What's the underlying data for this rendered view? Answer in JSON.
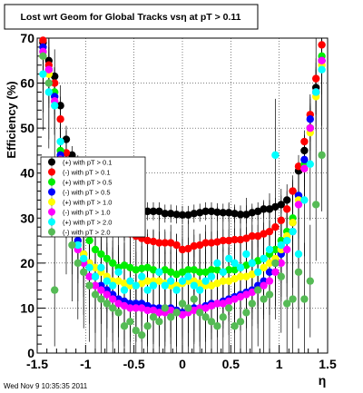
{
  "chart_data": {
    "type": "scatter",
    "title": "Lost wrt Geom for Global Tracks vsη at pT > 0.11",
    "ylabel": "Efficiency (%)",
    "xlabel": "η",
    "xlim": [
      -1.5,
      1.5
    ],
    "ylim": [
      0,
      70
    ],
    "xticks": [
      "-1.5",
      "-1",
      "-0.5",
      "0",
      "0.5",
      "1",
      "1.5"
    ],
    "yticks": [
      "0",
      "10",
      "20",
      "30",
      "40",
      "50",
      "60",
      "70"
    ],
    "grid": true,
    "legend_position": "left-middle",
    "footer": "Wed Nov  9 10:35:35 2011",
    "series": [
      {
        "name": "(+) with pT > 0.1",
        "color": "#000000",
        "err": 0.8,
        "x": [
          -1.44,
          -1.38,
          -1.32,
          -1.26,
          -1.2,
          -1.14,
          -1.08,
          -1.02,
          -0.96,
          -0.9,
          -0.84,
          -0.78,
          -0.72,
          -0.66,
          -0.6,
          -0.54,
          -0.48,
          -0.42,
          -0.36,
          -0.3,
          -0.24,
          -0.18,
          -0.12,
          -0.06,
          0.0,
          0.06,
          0.12,
          0.18,
          0.24,
          0.3,
          0.36,
          0.42,
          0.48,
          0.54,
          0.6,
          0.66,
          0.72,
          0.78,
          0.84,
          0.9,
          0.96,
          1.02,
          1.08,
          1.14,
          1.2,
          1.26,
          1.32,
          1.38,
          1.44
        ],
        "y": [
          69,
          65,
          61.5,
          55,
          47.5,
          44,
          42,
          40.5,
          39,
          37,
          35.5,
          34.5,
          33.5,
          33,
          32.5,
          32,
          32,
          31.5,
          31.5,
          31.5,
          31.5,
          31,
          31,
          30.8,
          30.7,
          30.7,
          31,
          31.2,
          31.5,
          31.5,
          31.3,
          31.2,
          31.2,
          31,
          30.8,
          30.8,
          31.2,
          31.5,
          32,
          32,
          32.5,
          33,
          34,
          36,
          40.5,
          45,
          50,
          59,
          65
        ]
      },
      {
        "name": "(-) with pT > 0.1",
        "color": "#ff0000",
        "err": 1.0,
        "x": [
          -1.44,
          -1.38,
          -1.32,
          -1.26,
          -1.2,
          -1.14,
          -1.08,
          -1.02,
          -0.96,
          -0.9,
          -0.84,
          -0.78,
          -0.72,
          -0.66,
          -0.6,
          -0.54,
          -0.48,
          -0.42,
          -0.36,
          -0.3,
          -0.24,
          -0.18,
          -0.12,
          -0.06,
          0.0,
          0.06,
          0.12,
          0.18,
          0.24,
          0.3,
          0.36,
          0.42,
          0.48,
          0.54,
          0.6,
          0.66,
          0.72,
          0.78,
          0.84,
          0.9,
          0.96,
          1.02,
          1.08,
          1.14,
          1.2,
          1.26,
          1.32,
          1.38,
          1.44
        ],
        "y": [
          69.5,
          64,
          60,
          52,
          44.5,
          40.5,
          37,
          35,
          33.5,
          32.5,
          31.5,
          30.5,
          29.5,
          28.5,
          27.5,
          26.5,
          26,
          25.5,
          25,
          24.8,
          24.5,
          24.5,
          24.5,
          24,
          23,
          23.2,
          23.8,
          24,
          24.5,
          24.5,
          24.7,
          25,
          25,
          25.2,
          25.2,
          25.5,
          26,
          26,
          26.5,
          27,
          28,
          29.5,
          32,
          36,
          41.5,
          47,
          53,
          61,
          68.5
        ]
      },
      {
        "name": "(+) with pT > 0.5",
        "color": "#00ee00",
        "err": 2.0,
        "x": [
          -1.44,
          -1.38,
          -1.32,
          -1.26,
          -1.2,
          -1.14,
          -1.08,
          -1.02,
          -0.96,
          -0.9,
          -0.84,
          -0.78,
          -0.72,
          -0.66,
          -0.6,
          -0.54,
          -0.48,
          -0.42,
          -0.36,
          -0.3,
          -0.24,
          -0.18,
          -0.12,
          -0.06,
          0.0,
          0.06,
          0.12,
          0.18,
          0.24,
          0.3,
          0.36,
          0.42,
          0.48,
          0.54,
          0.6,
          0.66,
          0.72,
          0.78,
          0.84,
          0.9,
          0.96,
          1.02,
          1.08,
          1.14,
          1.2,
          1.26,
          1.32,
          1.38,
          1.44
        ],
        "y": [
          67,
          63,
          58,
          45,
          37,
          32,
          28,
          27,
          25,
          23,
          22,
          21,
          20,
          19,
          19.5,
          19,
          18.5,
          18.8,
          19,
          18.5,
          18,
          18.5,
          18,
          17.5,
          18,
          18.5,
          18.5,
          18,
          18,
          18.5,
          18.5,
          18,
          18.5,
          18.5,
          19,
          19.5,
          20,
          20.5,
          21,
          22,
          23,
          25,
          27,
          30,
          35,
          42,
          50,
          58,
          66
        ]
      },
      {
        "name": "(-) with pT > 0.5",
        "color": "#0000ff",
        "err": 2.0,
        "x": [
          -1.44,
          -1.38,
          -1.32,
          -1.26,
          -1.2,
          -1.14,
          -1.08,
          -1.02,
          -0.96,
          -0.9,
          -0.84,
          -0.78,
          -0.72,
          -0.66,
          -0.6,
          -0.54,
          -0.48,
          -0.42,
          -0.36,
          -0.3,
          -0.24,
          -0.18,
          -0.12,
          -0.06,
          0.0,
          0.06,
          0.12,
          0.18,
          0.24,
          0.3,
          0.36,
          0.42,
          0.48,
          0.54,
          0.6,
          0.66,
          0.72,
          0.78,
          0.84,
          0.9,
          0.96,
          1.02,
          1.08,
          1.14,
          1.2,
          1.26,
          1.32,
          1.38,
          1.44
        ],
        "y": [
          68,
          63,
          57,
          44,
          36,
          30,
          25,
          22,
          20,
          17,
          15,
          14,
          13,
          12,
          11.5,
          11,
          11,
          11,
          10.5,
          10,
          10,
          10,
          10,
          9.5,
          9,
          9.5,
          10,
          10,
          10.5,
          11,
          11,
          11.5,
          12,
          12.5,
          13,
          13.5,
          14,
          15,
          16,
          18,
          20,
          22,
          25,
          29,
          35,
          43,
          52,
          58,
          65
        ]
      },
      {
        "name": "(+) with pT > 1.0",
        "color": "#ffff00",
        "err": 3.0,
        "x": [
          -1.44,
          -1.38,
          -1.32,
          -1.26,
          -1.2,
          -1.14,
          -1.08,
          -1.02,
          -0.96,
          -0.9,
          -0.84,
          -0.78,
          -0.72,
          -0.66,
          -0.6,
          -0.54,
          -0.48,
          -0.42,
          -0.36,
          -0.3,
          -0.24,
          -0.18,
          -0.12,
          -0.06,
          0.0,
          0.06,
          0.12,
          0.18,
          0.24,
          0.3,
          0.36,
          0.42,
          0.48,
          0.54,
          0.6,
          0.66,
          0.72,
          0.78,
          0.84,
          0.9,
          0.96,
          1.02,
          1.08,
          1.14,
          1.2,
          1.26,
          1.32,
          1.38,
          1.44
        ],
        "y": [
          66,
          62,
          56,
          43,
          35,
          29,
          24,
          22,
          20,
          19,
          18,
          17,
          16,
          16,
          15.5,
          15,
          15,
          15.5,
          16,
          16,
          16,
          15.5,
          15,
          15,
          15.5,
          16,
          16,
          15.5,
          15,
          15,
          15.5,
          16,
          16,
          16.5,
          17,
          17,
          17.5,
          18,
          19,
          20,
          21,
          23,
          26,
          29,
          34,
          41,
          49,
          57,
          64
        ]
      },
      {
        "name": "(-) with pT > 1.0",
        "color": "#ff00ff",
        "err": 3.0,
        "x": [
          -1.44,
          -1.38,
          -1.32,
          -1.26,
          -1.2,
          -1.14,
          -1.08,
          -1.02,
          -0.96,
          -0.9,
          -0.84,
          -0.78,
          -0.72,
          -0.66,
          -0.6,
          -0.54,
          -0.48,
          -0.42,
          -0.36,
          -0.3,
          -0.24,
          -0.18,
          -0.12,
          -0.06,
          0.0,
          0.06,
          0.12,
          0.18,
          0.24,
          0.3,
          0.36,
          0.42,
          0.48,
          0.54,
          0.6,
          0.66,
          0.72,
          0.78,
          0.84,
          0.9,
          0.96,
          1.02,
          1.08,
          1.14,
          1.2,
          1.26,
          1.32,
          1.38,
          1.44
        ],
        "y": [
          67,
          63,
          56,
          43,
          35,
          28,
          23,
          20,
          17,
          15,
          14,
          13,
          12,
          11,
          10.5,
          10,
          10,
          10,
          9.5,
          9.5,
          9,
          9,
          9.5,
          9,
          8.5,
          9,
          9.5,
          10,
          10,
          10.5,
          11,
          11,
          11.5,
          12,
          12.5,
          13,
          13.5,
          14,
          15,
          16,
          18,
          20,
          23,
          27,
          33,
          41,
          50,
          58,
          65
        ]
      },
      {
        "name": "(+) with pT > 2.0",
        "color": "#00ffff",
        "err": 5.0,
        "x": [
          -1.44,
          -1.38,
          -1.32,
          -1.26,
          -1.2,
          -1.14,
          -1.08,
          -1.02,
          -0.96,
          -0.9,
          -0.84,
          -0.78,
          -0.72,
          -0.66,
          -0.6,
          -0.54,
          -0.48,
          -0.42,
          -0.36,
          -0.3,
          -0.24,
          -0.18,
          -0.12,
          -0.06,
          0.0,
          0.06,
          0.12,
          0.18,
          0.24,
          0.3,
          0.36,
          0.42,
          0.48,
          0.54,
          0.6,
          0.66,
          0.72,
          0.78,
          0.84,
          0.9,
          0.96,
          1.02,
          1.08,
          1.14,
          1.2,
          1.26,
          1.32,
          1.38,
          1.44
        ],
        "y": [
          62,
          58,
          55,
          47,
          38,
          30,
          24,
          21,
          19,
          17,
          19,
          16,
          15,
          18,
          14,
          16,
          15,
          17,
          14,
          15,
          18,
          15,
          16,
          14,
          16,
          17,
          15,
          14,
          16,
          17,
          20,
          18,
          21,
          20,
          19,
          22,
          20,
          18,
          21,
          23,
          44,
          24,
          25,
          27,
          22,
          34,
          42,
          58,
          63
        ]
      },
      {
        "name": "(-) with pT > 2.0",
        "color": "#55bb55",
        "err": 5.0,
        "x": [
          -1.44,
          -1.38,
          -1.32,
          -1.26,
          -1.2,
          -1.14,
          -1.08,
          -1.02,
          -0.96,
          -0.9,
          -0.84,
          -0.78,
          -0.72,
          -0.66,
          -0.6,
          -0.54,
          -0.48,
          -0.42,
          -0.36,
          -0.3,
          -0.24,
          -0.18,
          -0.12,
          -0.06,
          0.0,
          0.06,
          0.12,
          0.18,
          0.24,
          0.3,
          0.36,
          0.42,
          0.48,
          0.54,
          0.6,
          0.66,
          0.72,
          0.78,
          0.84,
          0.9,
          0.96,
          1.02,
          1.08,
          1.14,
          1.2,
          1.26,
          1.32,
          1.38,
          1.44
        ],
        "y": [
          66,
          60,
          14,
          42,
          30,
          24,
          20,
          18,
          15,
          13,
          12,
          11,
          10,
          9,
          6,
          7,
          5,
          4,
          6,
          8,
          7,
          10,
          8,
          9,
          11,
          10,
          12,
          9,
          8,
          7,
          6,
          8,
          10,
          6,
          7,
          9,
          11,
          14,
          12,
          13,
          20,
          17,
          11,
          12,
          18,
          12,
          16,
          33,
          44
        ]
      }
    ]
  }
}
